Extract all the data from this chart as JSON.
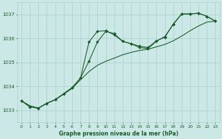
{
  "title": "",
  "xlabel": "Graphe pression niveau de la mer (hPa)",
  "bg_color": "#cce8e6",
  "grid_color": "#aacfcc",
  "line_color": "#1a5c2a",
  "text_color": "#1a5c2a",
  "ylim": [
    1032.5,
    1037.5
  ],
  "xlim": [
    -0.5,
    23.5
  ],
  "yticks": [
    1033,
    1034,
    1035,
    1036,
    1037
  ],
  "xticks": [
    0,
    1,
    2,
    3,
    4,
    5,
    6,
    7,
    8,
    9,
    10,
    11,
    12,
    13,
    14,
    15,
    16,
    17,
    18,
    19,
    20,
    21,
    22,
    23
  ],
  "line1_x": [
    0,
    1,
    2,
    3,
    4,
    5,
    6,
    7,
    8,
    9,
    10,
    11,
    12,
    13,
    14,
    15,
    16,
    17,
    18,
    19,
    20,
    21,
    22,
    23
  ],
  "line1_y": [
    1033.4,
    1033.15,
    1033.1,
    1033.3,
    1033.45,
    1033.7,
    1033.95,
    1034.35,
    1035.85,
    1036.3,
    1036.32,
    1036.15,
    1035.88,
    1035.78,
    1035.68,
    1035.62,
    1035.9,
    1036.05,
    1036.6,
    1037.02,
    1037.02,
    1037.05,
    1036.92,
    1036.72
  ],
  "line2_x": [
    0,
    1,
    2,
    3,
    4,
    5,
    6,
    7,
    8,
    9,
    10,
    11,
    12,
    13,
    14,
    15,
    16,
    17,
    18,
    19,
    20,
    21,
    22,
    23
  ],
  "line2_y": [
    1033.4,
    1033.2,
    1033.1,
    1033.3,
    1033.45,
    1033.68,
    1033.92,
    1034.28,
    1034.62,
    1034.88,
    1035.05,
    1035.18,
    1035.32,
    1035.42,
    1035.5,
    1035.55,
    1035.65,
    1035.75,
    1035.9,
    1036.1,
    1036.32,
    1036.52,
    1036.68,
    1036.72
  ],
  "line3_x": [
    0,
    1,
    2,
    3,
    4,
    5,
    6,
    7,
    8,
    9,
    10,
    11,
    12,
    13,
    14,
    15,
    16,
    17,
    18,
    19,
    20,
    21,
    22,
    23
  ],
  "line3_y": [
    1033.4,
    1033.15,
    1033.1,
    1033.3,
    1033.45,
    1033.7,
    1033.95,
    1034.35,
    1035.05,
    1035.85,
    1036.3,
    1036.2,
    1035.88,
    1035.78,
    1035.62,
    1035.58,
    1035.88,
    1036.08,
    1036.58,
    1037.02,
    1037.02,
    1037.05,
    1036.92,
    1036.72
  ]
}
